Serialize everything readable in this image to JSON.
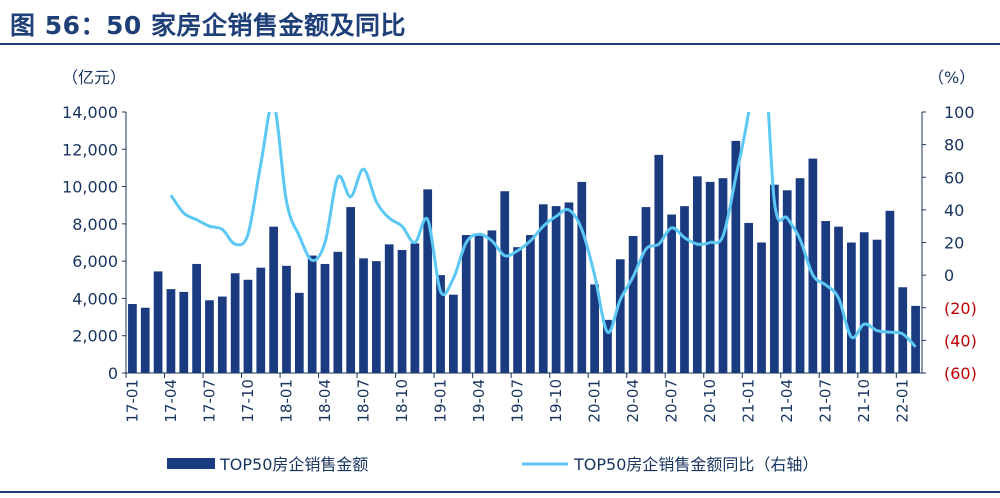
{
  "title": "图 56：50 家房企销售金额及同比",
  "chart_data": {
    "type": "bar+line",
    "left_unit": "（亿元）",
    "right_unit": "（%）",
    "y_left_ticks": [
      "14,000",
      "12,000",
      "10,000",
      "8,000",
      "6,000",
      "4,000",
      "2,000",
      "0"
    ],
    "y_right_ticks": [
      "100",
      "80",
      "60",
      "40",
      "20",
      "0",
      "(20)",
      "(40)",
      "(60)"
    ],
    "ylim_left": [
      0,
      14000
    ],
    "ylim_right": [
      -60,
      100
    ],
    "x_tick_labels": [
      "17-01",
      "17-04",
      "17-07",
      "17-10",
      "18-01",
      "18-04",
      "18-07",
      "18-10",
      "19-01",
      "19-04",
      "19-07",
      "19-10",
      "20-01",
      "20-04",
      "20-07",
      "20-10",
      "21-01",
      "21-04",
      "21-07",
      "21-10",
      "22-01"
    ],
    "categories": [
      "17-01",
      "17-02",
      "17-03",
      "17-04",
      "17-05",
      "17-06",
      "17-07",
      "17-08",
      "17-09",
      "17-10",
      "17-11",
      "17-12",
      "18-01",
      "18-02",
      "18-03",
      "18-04",
      "18-05",
      "18-06",
      "18-07",
      "18-08",
      "18-09",
      "18-10",
      "18-11",
      "18-12",
      "19-01",
      "19-02",
      "19-03",
      "19-04",
      "19-05",
      "19-06",
      "19-07",
      "19-08",
      "19-09",
      "19-10",
      "19-11",
      "19-12",
      "20-01",
      "20-02",
      "20-03",
      "20-04",
      "20-05",
      "20-06",
      "20-07",
      "20-08",
      "20-09",
      "20-10",
      "20-11",
      "20-12",
      "21-01",
      "21-02",
      "21-03",
      "21-04",
      "21-05",
      "21-06",
      "21-07",
      "21-08",
      "21-09",
      "21-10",
      "21-11",
      "21-12",
      "22-01",
      "22-02"
    ],
    "series": [
      {
        "name": "TOP50房企销售金额",
        "axis": "left",
        "values": [
          3700,
          3500,
          5450,
          4500,
          4350,
          5850,
          3900,
          4100,
          5350,
          5000,
          5650,
          7850,
          5750,
          4300,
          6300,
          5850,
          6500,
          8900,
          6150,
          6000,
          6900,
          6600,
          6950,
          9850,
          5250,
          4200,
          7400,
          7400,
          7650,
          9750,
          6750,
          7400,
          9050,
          8950,
          9150,
          10250,
          4750,
          2850,
          6100,
          7350,
          8900,
          11700,
          8500,
          8950,
          10550,
          10250,
          10450,
          12450,
          8050,
          7000,
          10100,
          9800,
          10450,
          11500,
          8150,
          7850,
          7000,
          7550,
          7150,
          8700,
          4600,
          3600
        ]
      },
      {
        "name": "TOP50房企销售金额同比（右轴）",
        "axis": "right",
        "color": "#5bc8f5",
        "values": [
          null,
          null,
          null,
          49,
          38,
          34,
          30,
          28,
          19,
          25,
          68,
          105,
          45,
          24,
          9,
          20,
          60,
          48,
          65,
          45,
          35,
          30,
          20,
          34,
          -10,
          -2,
          20,
          25,
          21,
          12,
          15,
          21,
          30,
          36,
          40,
          28,
          0,
          -35,
          -15,
          -1,
          16,
          19,
          29,
          23,
          19,
          20,
          24,
          60,
          100,
          160,
          45,
          35,
          22,
          0,
          -6,
          -14,
          -38,
          -30,
          -34,
          -35,
          -36,
          -44
        ]
      }
    ],
    "colors": {
      "bars": "#1b3b80",
      "line": "#5bc8f5",
      "axis": "#17345f",
      "negative": "#c00000"
    }
  },
  "legend": {
    "bar_label": "TOP50房企销售金额",
    "line_label": "TOP50房企销售金额同比（右轴）"
  }
}
